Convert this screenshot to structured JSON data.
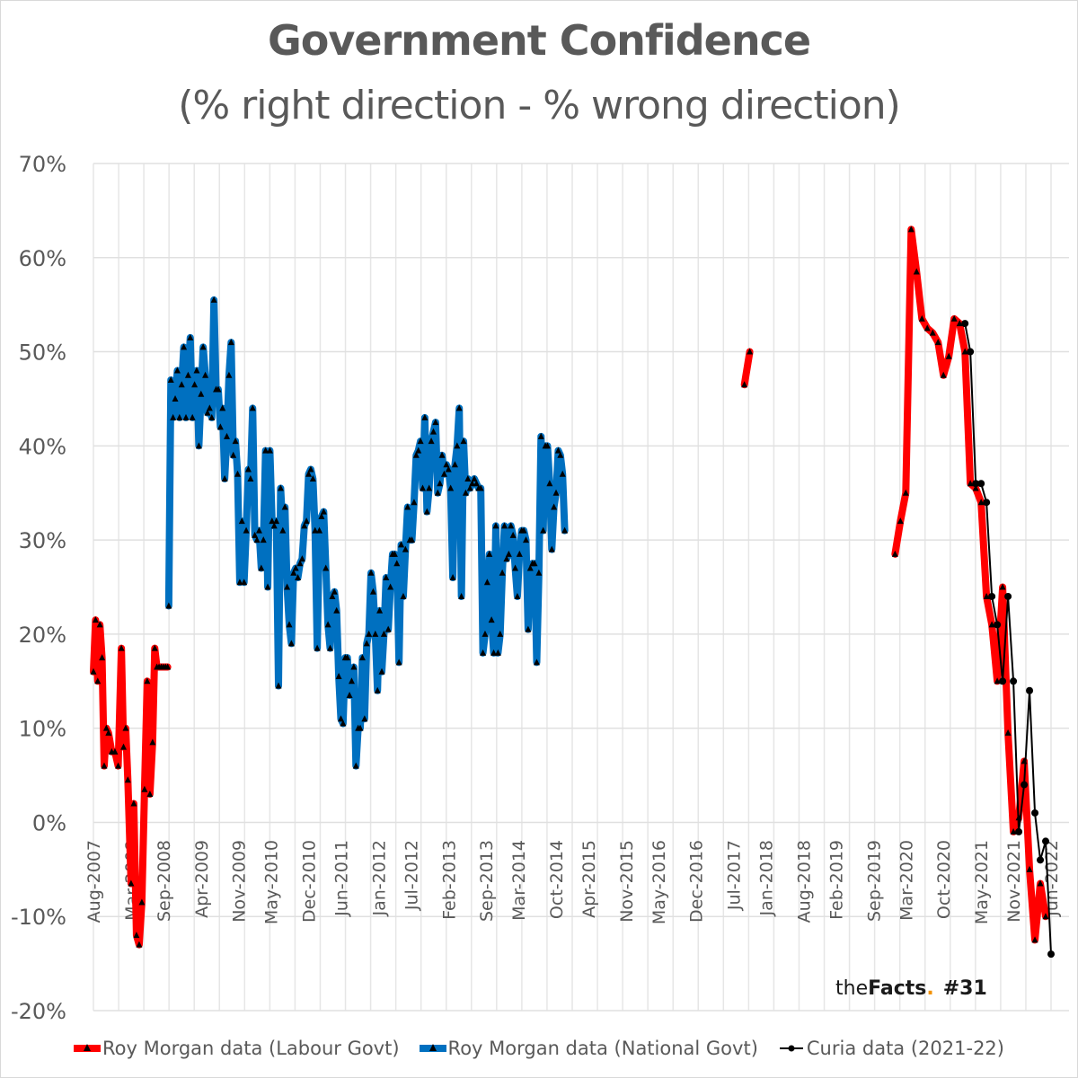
{
  "chart_data": {
    "type": "line",
    "title": "Government Confidence",
    "subtitle": "(% right direction - % wrong direction)",
    "xlabel": "",
    "ylabel": "",
    "ylim": [
      -20,
      70
    ],
    "y_ticks": [
      "70%",
      "60%",
      "50%",
      "40%",
      "30%",
      "20%",
      "10%",
      "0%",
      "-10%",
      "-20%"
    ],
    "y_tick_values": [
      70,
      60,
      50,
      40,
      30,
      20,
      10,
      0,
      -10,
      -20
    ],
    "x_start": "Aug-2007",
    "x_end": "Jun-2022",
    "x_ticks": [
      "Aug-2007",
      "Mar-2008",
      "Sep-2008",
      "Apr-2009",
      "Nov-2009",
      "May-2010",
      "Dec-2010",
      "Jun-2011",
      "Jan-2012",
      "Jul-2012",
      "Feb-2013",
      "Sep-2013",
      "Mar-2014",
      "Oct-2014",
      "Apr-2015",
      "Nov-2015",
      "May-2016",
      "Dec-2016",
      "Jul-2017",
      "Jan-2018",
      "Aug-2018",
      "Feb-2019",
      "Sep-2019",
      "Mar-2020",
      "Oct-2020",
      "May-2021",
      "Nov-2021",
      "Jun-2022"
    ],
    "x_tick_months": [
      0,
      7,
      13,
      20,
      27,
      33,
      40,
      46,
      53,
      59,
      66,
      73,
      79,
      86,
      92,
      99,
      105,
      112,
      119,
      125,
      132,
      138,
      145,
      151,
      158,
      165,
      171,
      178
    ],
    "grid": true,
    "legend_position": "bottom",
    "series": [
      {
        "name": "Roy Morgan data (Labour Govt)",
        "color": "#ff0000",
        "marker": "triangle",
        "segments": [
          {
            "x_months": [
              0,
              0.4,
              0.8,
              1.2,
              1.6,
              2.0,
              2.4,
              2.8,
              3.4,
              4.0,
              4.6,
              5.2,
              5.6,
              6.0,
              6.4,
              7.0,
              7.5,
              8.0,
              8.5,
              9.0,
              9.5,
              10.0,
              10.5,
              11.0,
              11.4,
              11.8,
              12.2,
              12.6,
              13.0,
              13.4,
              13.8
            ],
            "values": [
              16,
              21.5,
              15,
              21,
              17.5,
              6,
              10,
              9.5,
              7.5,
              7.5,
              6,
              18.5,
              8,
              10,
              4.5,
              -6.5,
              2,
              -12,
              -13,
              -8.5,
              3.5,
              15,
              3,
              8.5,
              18.5,
              16.5,
              16.5,
              16.5,
              16.5,
              16.5,
              16.5
            ]
          },
          {
            "x_months": [
              121,
              122
            ],
            "values": [
              46.5,
              50
            ]
          },
          {
            "x_months": [
              149,
              150,
              151,
              152,
              153,
              154,
              155,
              156,
              157,
              158,
              159,
              160,
              161,
              162,
              163,
              164,
              165,
              166,
              167,
              168,
              169,
              170,
              171,
              172,
              173,
              174,
              175,
              176,
              177
            ],
            "values": [
              28.5,
              32,
              35,
              63,
              58.5,
              53.5,
              52.5,
              52,
              51,
              47.5,
              49.5,
              53.5,
              53,
              50,
              36,
              35.5,
              34,
              24,
              21,
              15,
              25,
              9.5,
              -1,
              0.5,
              6.5,
              -5,
              -12.5,
              -6.5,
              -10
            ]
          }
        ]
      },
      {
        "name": "Roy Morgan data (National Govt)",
        "color": "#0070c0",
        "marker": "triangle",
        "segments": [
          {
            "x_months": [
              14,
              14.4,
              14.8,
              15.2,
              15.6,
              16.0,
              16.4,
              16.8,
              17.2,
              17.6,
              18.0,
              18.4,
              18.8,
              19.2,
              19.6,
              20.0,
              20.4,
              20.8,
              21.2,
              21.6,
              22.0,
              22.4,
              22.8,
              23.2,
              23.6,
              24.0,
              24.4,
              24.8,
              25.2,
              25.6,
              26.0,
              26.4,
              26.8,
              27.2,
              27.6,
              28.0,
              28.4,
              28.8,
              29.2,
              29.6,
              30.0,
              30.4,
              30.8,
              31.2,
              31.6,
              32.0,
              32.4,
              32.8,
              33.2,
              33.6,
              34.0,
              34.4,
              34.8,
              35.2,
              35.6,
              36.0,
              36.4,
              36.8,
              37.2,
              37.6,
              38.0,
              38.4,
              38.8,
              39.2,
              39.6,
              40.0,
              40.4,
              40.8,
              41.2,
              41.6,
              42.0,
              42.4,
              42.8,
              43.2,
              43.6,
              44.0,
              44.4,
              44.8,
              45.2,
              45.6,
              46.0,
              46.4,
              46.8,
              47.2,
              47.6,
              48.0,
              48.4,
              48.8,
              49.2,
              49.6,
              50.0,
              50.4,
              50.8,
              51.2,
              51.6,
              52.0,
              52.4,
              52.8,
              53.2,
              53.6,
              54.0,
              54.4,
              54.8,
              55.2,
              55.6,
              56.0,
              56.4,
              56.8,
              57.2,
              57.6,
              58.0,
              58.4,
              58.8,
              59.2,
              59.6,
              60.0,
              60.4,
              60.8,
              61.2,
              61.6,
              62.0,
              62.4,
              62.8,
              63.2,
              63.6,
              64.0,
              64.4,
              64.8,
              65.2,
              65.6,
              66.0,
              66.4,
              66.8,
              67.2,
              67.6,
              68.0,
              68.4,
              68.8,
              69.2,
              69.6,
              70.0,
              70.4,
              70.8,
              71.2,
              71.6,
              72.0,
              72.4,
              72.8,
              73.2,
              73.6,
              74.0,
              74.4,
              74.8,
              75.2,
              75.6,
              76.0,
              76.4,
              76.8,
              77.2,
              77.6,
              78.0,
              78.4,
              78.8,
              79.2,
              79.6,
              80.0,
              80.4,
              80.8,
              81.2,
              81.6,
              82.0,
              82.4,
              82.8,
              83.2,
              83.6,
              84.0,
              84.4,
              84.8,
              85.2,
              85.6,
              86.0,
              86.4,
              86.8,
              87.2,
              87.6,
              88.0,
              88.4,
              88.8,
              89.2,
              89.6,
              90.0,
              90.4,
              90.8,
              91.2
            ],
            "values": [
              23,
              47,
              43,
              45,
              48,
              43,
              46.5,
              50.5,
              43,
              47.5,
              51.5,
              43,
              46.5,
              48,
              40,
              45.5,
              50.5,
              47.5,
              43.5,
              44,
              43,
              55.5,
              46,
              46,
              42,
              44,
              36.5,
              41,
              47.5,
              51,
              39,
              40.5,
              37,
              25.5,
              32,
              25.5,
              31,
              37.5,
              36.5,
              44,
              30.5,
              30,
              31,
              27,
              30,
              39.5,
              25,
              39.5,
              32,
              31.5,
              32,
              14.5,
              35.5,
              31,
              33.5,
              25,
              21,
              19,
              26.5,
              27,
              26,
              27.5,
              28,
              31.5,
              32,
              37,
              37.5,
              36.5,
              31,
              18.5,
              31,
              32.5,
              33,
              27,
              21,
              18.5,
              24,
              24.5,
              22.5,
              15.5,
              11,
              10.5,
              17.5,
              17.5,
              13.5,
              15,
              16.5,
              6,
              10,
              10,
              17.5,
              11,
              19,
              20,
              26.5,
              24.5,
              20,
              14,
              22.5,
              16,
              20,
              26,
              20.5,
              25,
              28.5,
              28.5,
              27.5,
              17,
              29.5,
              24,
              29,
              33.5,
              30,
              30,
              34,
              39,
              39.5,
              40.5,
              35.5,
              43,
              33,
              35.5,
              40.5,
              41.5,
              42.5,
              35,
              36,
              39,
              37,
              38,
              37.5,
              35.5,
              26,
              38,
              40,
              44,
              24,
              40.5,
              35,
              36.5,
              35.5,
              36,
              36.5,
              36,
              35.5,
              35.5,
              18,
              20,
              25.5,
              28.5,
              21.5,
              18,
              31.5,
              18,
              20,
              26.5,
              31.5,
              28,
              28.5,
              31.5,
              30.5,
              27,
              24,
              28.5,
              31,
              31,
              30,
              20.5,
              27,
              27.5,
              27.5,
              17,
              26.5,
              41,
              31,
              40,
              40,
              36,
              29,
              33.5,
              35,
              39.5,
              39,
              37,
              31
            ]
          }
        ]
      },
      {
        "name": "Curia data (2021-22)",
        "color": "#000000",
        "marker": "circle",
        "segments": [
          {
            "x_months": [
              162,
              163,
              164,
              165,
              166,
              167,
              168,
              169,
              170,
              171,
              172,
              173,
              174,
              175,
              176,
              177,
              178
            ],
            "values": [
              53,
              50,
              36,
              36,
              34,
              24,
              21,
              15,
              24,
              15,
              -1,
              4,
              14,
              1,
              -4,
              -2,
              -14
            ]
          }
        ]
      }
    ]
  },
  "legend": {
    "items": [
      {
        "label": "Roy Morgan data (Labour Govt)",
        "color": "#ff0000"
      },
      {
        "label": "Roy Morgan data (National Govt)",
        "color": "#0070c0"
      },
      {
        "label": "Curia data (2021-22)",
        "color": "#000000"
      }
    ]
  },
  "brand": {
    "prefix": "the",
    "name": "Facts",
    "dot": ".",
    "issue": "#31",
    "accent": "#f39200"
  }
}
